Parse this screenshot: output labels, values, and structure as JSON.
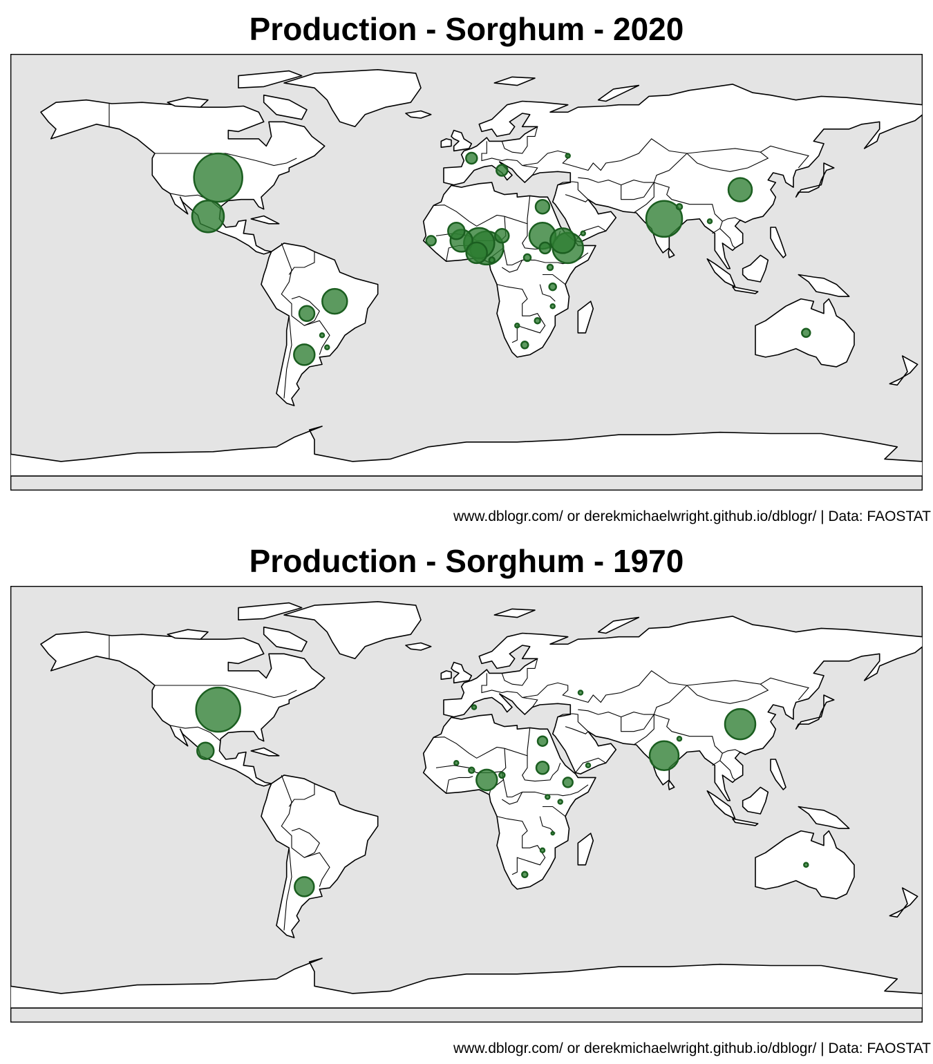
{
  "maps": [
    {
      "title": "Production - Sorghum - 2020",
      "caption": "www.dblogr.com/ or derekmichaelwright.github.io/dblogr/ | Data: FAOSTAT",
      "bubbles": [
        {
          "lon": -98,
          "lat": 39,
          "size": 35
        },
        {
          "lon": -102,
          "lat": 23,
          "size": 23
        },
        {
          "lon": -52,
          "lat": -12,
          "size": 18
        },
        {
          "lon": -63,
          "lat": -17,
          "size": 11
        },
        {
          "lon": -64,
          "lat": -34,
          "size": 15
        },
        {
          "lon": -57,
          "lat": -26,
          "size": 3
        },
        {
          "lon": -55,
          "lat": -31,
          "size": 3
        },
        {
          "lon": 8,
          "lat": 10,
          "size": 24
        },
        {
          "lon": 5,
          "lat": 12,
          "size": 22
        },
        {
          "lon": 4,
          "lat": 8,
          "size": 15
        },
        {
          "lon": -2,
          "lat": 13,
          "size": 16
        },
        {
          "lon": -4,
          "lat": 17,
          "size": 12
        },
        {
          "lon": 14,
          "lat": 15,
          "size": 10
        },
        {
          "lon": 30,
          "lat": 15,
          "size": 19
        },
        {
          "lon": 40,
          "lat": 10,
          "size": 22
        },
        {
          "lon": 38,
          "lat": 13,
          "size": 18
        },
        {
          "lon": 30,
          "lat": 27,
          "size": 10
        },
        {
          "lon": 78,
          "lat": 22,
          "size": 26
        },
        {
          "lon": 108,
          "lat": 34,
          "size": 17
        },
        {
          "lon": 2,
          "lat": 47,
          "size": 8
        },
        {
          "lon": 14,
          "lat": 42,
          "size": 8
        },
        {
          "lon": 134,
          "lat": -25,
          "size": 6
        },
        {
          "lon": -14,
          "lat": 13,
          "size": 7
        },
        {
          "lon": 31,
          "lat": 10,
          "size": 8
        },
        {
          "lon": 24,
          "lat": 6,
          "size": 5
        },
        {
          "lon": 33,
          "lat": 2,
          "size": 4
        },
        {
          "lon": 34,
          "lat": -6,
          "size": 5
        },
        {
          "lon": 28,
          "lat": -20,
          "size": 4
        },
        {
          "lon": 23,
          "lat": -30,
          "size": 5
        },
        {
          "lon": 84,
          "lat": 27,
          "size": 4
        },
        {
          "lon": 96,
          "lat": 21,
          "size": 3
        },
        {
          "lon": 46,
          "lat": 16,
          "size": 3
        },
        {
          "lon": 34,
          "lat": -14,
          "size": 3
        },
        {
          "lon": 20,
          "lat": -22,
          "size": 3
        },
        {
          "lon": 40,
          "lat": 48,
          "size": 3
        },
        {
          "lon": 10,
          "lat": 5,
          "size": 4
        }
      ]
    },
    {
      "title": "Production - Sorghum - 1970",
      "caption": "www.dblogr.com/ or derekmichaelwright.github.io/dblogr/ | Data: FAOSTAT",
      "bubbles": [
        {
          "lon": -98,
          "lat": 39,
          "size": 32
        },
        {
          "lon": -103,
          "lat": 22,
          "size": 12
        },
        {
          "lon": 78,
          "lat": 20,
          "size": 21
        },
        {
          "lon": 108,
          "lat": 33,
          "size": 22
        },
        {
          "lon": 8,
          "lat": 10,
          "size": 15
        },
        {
          "lon": -64,
          "lat": -34,
          "size": 14
        },
        {
          "lon": 30,
          "lat": 15,
          "size": 9
        },
        {
          "lon": 30,
          "lat": 26,
          "size": 7
        },
        {
          "lon": 40,
          "lat": 9,
          "size": 7
        },
        {
          "lon": 14,
          "lat": 12,
          "size": 4
        },
        {
          "lon": 2,
          "lat": 14,
          "size": 4
        },
        {
          "lon": -4,
          "lat": 17,
          "size": 3
        },
        {
          "lon": 37,
          "lat": 1,
          "size": 3
        },
        {
          "lon": 32,
          "lat": 3,
          "size": 3
        },
        {
          "lon": 23,
          "lat": -29,
          "size": 4
        },
        {
          "lon": 134,
          "lat": -25,
          "size": 3
        },
        {
          "lon": 3,
          "lat": 40,
          "size": 3
        },
        {
          "lon": 45,
          "lat": 46,
          "size": 3
        },
        {
          "lon": 84,
          "lat": 27,
          "size": 3
        },
        {
          "lon": 30,
          "lat": -19,
          "size": 3
        },
        {
          "lon": 34,
          "lat": -12,
          "size": 2
        },
        {
          "lon": 48,
          "lat": 16,
          "size": 3
        }
      ]
    }
  ]
}
